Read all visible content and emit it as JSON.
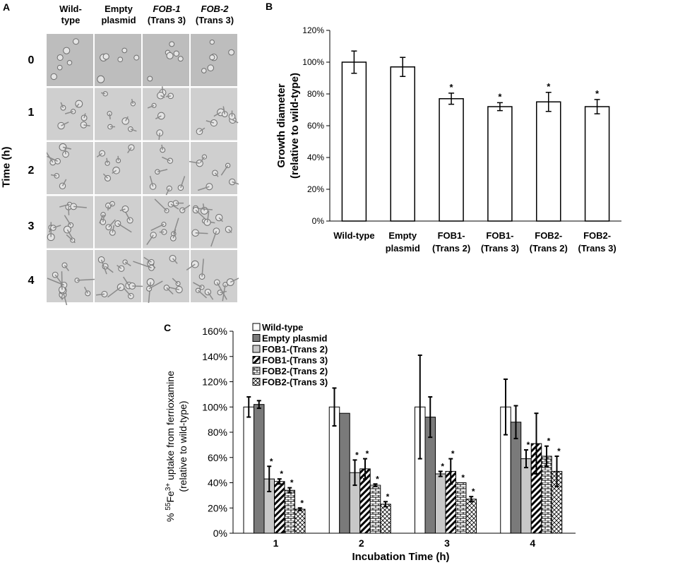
{
  "panelA": {
    "letter": "A",
    "columns": [
      {
        "l1": "Wild-",
        "l2": "type",
        "italic": false
      },
      {
        "l1": "Empty",
        "l2": "plasmid",
        "italic": false
      },
      {
        "l1": "FOB-1",
        "l2": "(Trans 3)",
        "italic": true
      },
      {
        "l1": "FOB-2",
        "l2": "(Trans 3)",
        "italic": true
      }
    ],
    "rows": [
      "0",
      "1",
      "2",
      "3",
      "4"
    ],
    "y_title": "Time (h)"
  },
  "chart_data": [
    {
      "panel": "B",
      "type": "bar",
      "categories": [
        [
          "Wild-type"
        ],
        [
          "Empty",
          "plasmid"
        ],
        [
          "FOB1-",
          "(Trans 2)"
        ],
        [
          "FOB1-",
          "(Trans 3)"
        ],
        [
          "FOB2-",
          "(Trans 2)"
        ],
        [
          "FOB2-",
          "(Trans 3)"
        ]
      ],
      "values": [
        100,
        97,
        77,
        72,
        75,
        72
      ],
      "errors": [
        7,
        6,
        3.5,
        2.5,
        6,
        4.5
      ],
      "significant": [
        false,
        false,
        true,
        true,
        true,
        true
      ],
      "star_label": "*",
      "ylabel": [
        "Growth diameter",
        "(relative to wild-type)"
      ],
      "ylim": [
        0,
        120
      ],
      "yticks": [
        "0%",
        "20%",
        "40%",
        "60%",
        "80%",
        "100%",
        "120%"
      ],
      "grid": false,
      "bar_color": "#ffffff"
    },
    {
      "panel": "C",
      "type": "bar",
      "categories": [
        "1",
        "2",
        "3",
        "4"
      ],
      "xlabel": "Incubation Time (h)",
      "ylabel": [
        "% 55Fe3+ uptake from ferrioxamine",
        "(relative to wild-type)"
      ],
      "ylim": [
        0,
        160
      ],
      "yticks": [
        "0%",
        "20%",
        "40%",
        "60%",
        "80%",
        "100%",
        "120%",
        "140%",
        "160%"
      ],
      "legend_position": "top-left",
      "star_label": "*",
      "series": [
        {
          "name": "Wild-type",
          "values": [
            100,
            100,
            100,
            100
          ],
          "errors": [
            8,
            15,
            41,
            22
          ],
          "significant": [
            false,
            false,
            false,
            false
          ],
          "pattern": "white"
        },
        {
          "name": "Empty plasmid",
          "values": [
            102,
            95,
            92,
            88
          ],
          "errors": [
            3,
            0,
            16,
            13
          ],
          "significant": [
            false,
            false,
            false,
            false
          ],
          "pattern": "dark"
        },
        {
          "name": "FOB1-(Trans 2)",
          "values": [
            43,
            48,
            47,
            59
          ],
          "errors": [
            10,
            10,
            2,
            7
          ],
          "significant": [
            true,
            true,
            true,
            true
          ],
          "pattern": "light"
        },
        {
          "name": "FOB1-(Trans 3)",
          "values": [
            41,
            51,
            49,
            71
          ],
          "errors": [
            2,
            8,
            10,
            24
          ],
          "significant": [
            true,
            true,
            true,
            false
          ],
          "pattern": "diagonal"
        },
        {
          "name": "FOB2-(Trans 2)",
          "values": [
            34,
            38,
            40,
            61
          ],
          "errors": [
            2,
            1,
            0,
            8
          ],
          "significant": [
            true,
            true,
            true,
            true
          ],
          "pattern": "brick"
        },
        {
          "name": "FOB2-(Trans 3)",
          "values": [
            19,
            23,
            27,
            49
          ],
          "errors": [
            1,
            2,
            2,
            12
          ],
          "significant": [
            true,
            true,
            true,
            true
          ],
          "pattern": "cross"
        }
      ]
    }
  ]
}
